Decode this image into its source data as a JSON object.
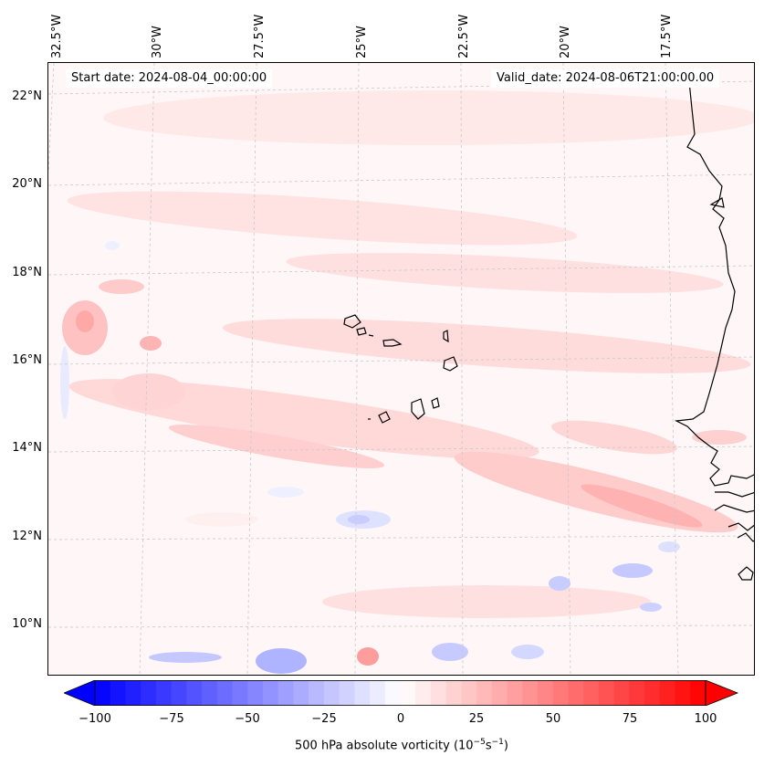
{
  "map": {
    "start_date": "Start date: 2024-08-04_00:00:00",
    "valid_date": "Valid_date: 2024-08-06T21:00:00.00",
    "longitude_labels": [
      "32.5°W",
      "30°W",
      "27.5°W",
      "25°W",
      "22.5°W",
      "20°W",
      "17.5°W"
    ],
    "latitude_labels": [
      "22°N",
      "20°N",
      "18°N",
      "16°N",
      "14°N",
      "12°N",
      "10°N"
    ],
    "colorbar": {
      "label_prefix": "500 hPa absolute vorticity (10",
      "label_exp1": "−5",
      "label_mid": "s",
      "label_exp2": "−1",
      "label_suffix": ")",
      "ticks": [
        "−100",
        "−75",
        "−50",
        "−25",
        "0",
        "25",
        "50",
        "75",
        "100"
      ],
      "min": -100,
      "max": 100,
      "colors": {
        "negative": "#0000ff",
        "neutral": "#ffffff",
        "positive": "#ff0000"
      }
    }
  }
}
